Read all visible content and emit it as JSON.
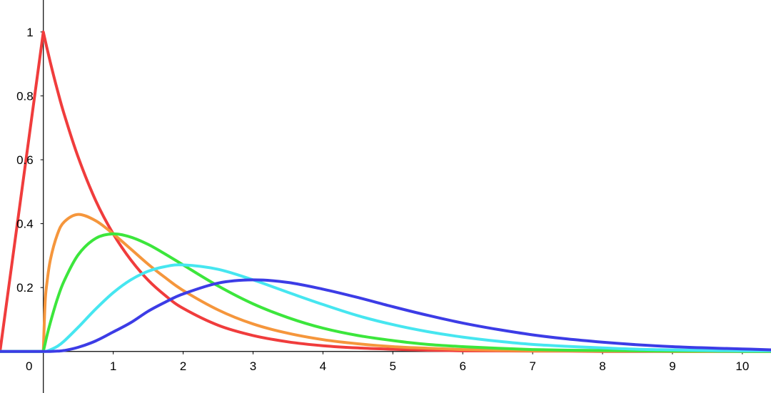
{
  "chart_data": {
    "type": "line",
    "title": "",
    "xlabel": "",
    "ylabel": "",
    "xlim": [
      -0.62,
      10.41
    ],
    "ylim": [
      -0.13,
      1.1
    ],
    "x_ticks": [
      0,
      1,
      2,
      3,
      4,
      5,
      6,
      7,
      8,
      9,
      10
    ],
    "x_tick_labels": [
      "0",
      "1",
      "2",
      "3",
      "4",
      "5",
      "6",
      "7",
      "8",
      "9",
      "10"
    ],
    "y_ticks": [
      0.2,
      0.4,
      0.6,
      0.8,
      1
    ],
    "y_tick_labels": [
      "0.2",
      "0.4",
      "0.6",
      "0.8",
      "1"
    ],
    "grid": false,
    "legend": "none",
    "x": [
      0,
      0.025,
      0.05,
      0.1,
      0.2,
      0.3,
      0.5,
      0.75,
      1,
      1.25,
      1.5,
      1.75,
      2,
      2.5,
      3,
      3.5,
      4,
      4.5,
      5,
      5.5,
      6,
      6.5,
      7,
      7.5,
      8,
      8.5,
      9,
      9.5,
      10,
      10.41
    ],
    "series": [
      {
        "color": "#f03c3c",
        "values": [
          1.0,
          0.975,
          0.951,
          0.905,
          0.819,
          0.741,
          0.607,
          0.472,
          0.368,
          0.287,
          0.223,
          0.174,
          0.135,
          0.082,
          0.05,
          0.03,
          0.018,
          0.011,
          0.007,
          0.004,
          0.002,
          0.002,
          0.001,
          0.001,
          0.0,
          0.0,
          0.0,
          0.0,
          0.0,
          0.0
        ]
      },
      {
        "color": "#f5963c",
        "values": [
          0.0,
          0.153,
          0.212,
          0.286,
          0.366,
          0.406,
          0.429,
          0.409,
          0.368,
          0.321,
          0.273,
          0.23,
          0.191,
          0.13,
          0.086,
          0.057,
          0.037,
          0.024,
          0.015,
          0.01,
          0.006,
          0.004,
          0.002,
          0.002,
          0.001,
          0.001,
          0.0,
          0.0,
          0.0,
          0.0
        ]
      },
      {
        "color": "#3ce63c",
        "values": [
          0.0,
          0.024,
          0.048,
          0.09,
          0.164,
          0.222,
          0.303,
          0.354,
          0.368,
          0.358,
          0.335,
          0.304,
          0.271,
          0.205,
          0.149,
          0.106,
          0.073,
          0.05,
          0.034,
          0.022,
          0.015,
          0.01,
          0.006,
          0.004,
          0.003,
          0.002,
          0.001,
          0.001,
          0.0,
          0.0
        ]
      },
      {
        "color": "#46e6f0",
        "values": [
          0.0,
          0.0,
          0.001,
          0.005,
          0.016,
          0.033,
          0.076,
          0.133,
          0.184,
          0.224,
          0.251,
          0.266,
          0.271,
          0.257,
          0.224,
          0.185,
          0.147,
          0.112,
          0.084,
          0.062,
          0.045,
          0.032,
          0.022,
          0.016,
          0.011,
          0.007,
          0.005,
          0.003,
          0.002,
          0.002
        ]
      },
      {
        "color": "#3c3ce6",
        "values": [
          0.0,
          0.0,
          0.0,
          0.0,
          0.001,
          0.003,
          0.013,
          0.033,
          0.061,
          0.09,
          0.126,
          0.155,
          0.18,
          0.214,
          0.224,
          0.216,
          0.195,
          0.169,
          0.14,
          0.113,
          0.089,
          0.069,
          0.052,
          0.039,
          0.029,
          0.021,
          0.015,
          0.011,
          0.008,
          0.005
        ]
      }
    ]
  }
}
